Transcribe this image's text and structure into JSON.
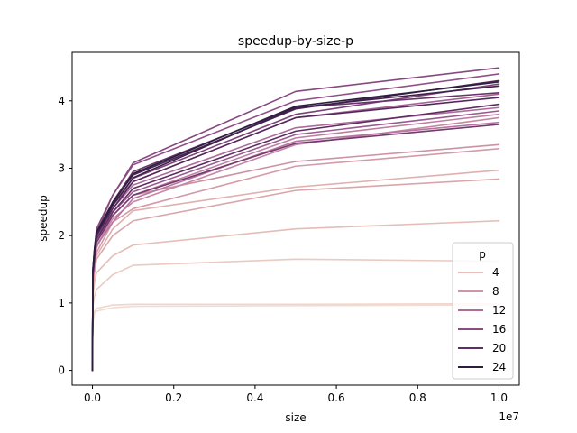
{
  "chart_data": {
    "type": "line",
    "title": "speedup-by-size-p",
    "xlabel": "size",
    "ylabel": "speedup",
    "x_offset_label": "1e7",
    "xlim": [
      -500000,
      10500000
    ],
    "ylim": [
      -0.22,
      4.72
    ],
    "x_ticks": [
      0,
      2000000,
      4000000,
      6000000,
      8000000,
      10000000
    ],
    "x_tick_labels": [
      "0.0",
      "0.2",
      "0.4",
      "0.6",
      "0.8",
      "1.0"
    ],
    "y_ticks": [
      0,
      1,
      2,
      3,
      4
    ],
    "y_tick_labels": [
      "0",
      "1",
      "2",
      "3",
      "4"
    ],
    "grid": false,
    "legend": {
      "title": "p",
      "placement": "lower-right",
      "entries": [
        {
          "label": "4",
          "color": "#e8bfb8"
        },
        {
          "label": "8",
          "color": "#cf94a6"
        },
        {
          "label": "12",
          "color": "#b06e97"
        },
        {
          "label": "16",
          "color": "#8a4d80"
        },
        {
          "label": "20",
          "color": "#5e2e66"
        },
        {
          "label": "24",
          "color": "#2d1e3e"
        }
      ]
    },
    "x": [
      0,
      10000,
      50000,
      100000,
      500000,
      1000000,
      5000000,
      10000000
    ],
    "series": [
      {
        "color": "#f3dcd4",
        "values": [
          0,
          0.7,
          0.85,
          0.88,
          0.93,
          0.95,
          0.96,
          0.97
        ]
      },
      {
        "color": "#f0d5cd",
        "values": [
          0,
          0.75,
          0.87,
          0.92,
          0.97,
          0.98,
          0.98,
          0.99
        ]
      },
      {
        "color": "#eacac1",
        "values": [
          0,
          0.95,
          1.1,
          1.2,
          1.42,
          1.56,
          1.65,
          1.62
        ]
      },
      {
        "color": "#e5bdb6",
        "values": [
          0,
          1.1,
          1.3,
          1.45,
          1.7,
          1.86,
          2.1,
          2.22
        ]
      },
      {
        "color": "#dfb0ae",
        "values": [
          0,
          1.25,
          1.5,
          1.7,
          2.1,
          2.37,
          2.72,
          2.97
        ]
      },
      {
        "color": "#d9a6aa",
        "values": [
          0,
          1.2,
          1.45,
          1.65,
          2.0,
          2.22,
          2.67,
          2.84
        ]
      },
      {
        "color": "#d39aa7",
        "values": [
          0,
          1.3,
          1.55,
          1.75,
          2.2,
          2.4,
          3.03,
          3.29
        ]
      },
      {
        "color": "#cc91a5",
        "values": [
          0,
          1.35,
          1.6,
          1.82,
          2.3,
          2.6,
          3.1,
          3.35
        ]
      },
      {
        "color": "#c587a3",
        "values": [
          0,
          1.35,
          1.6,
          1.85,
          2.25,
          2.5,
          3.35,
          3.75
        ]
      },
      {
        "color": "#be7ea1",
        "values": [
          0,
          1.4,
          1.65,
          1.9,
          2.3,
          2.6,
          3.45,
          3.8
        ]
      },
      {
        "color": "#b6749e",
        "values": [
          0,
          1.35,
          1.6,
          1.85,
          2.2,
          2.55,
          3.4,
          3.68
        ]
      },
      {
        "color": "#ad6b9a",
        "values": [
          0,
          1.4,
          1.7,
          1.95,
          2.4,
          2.75,
          3.6,
          3.9
        ]
      },
      {
        "color": "#a46295",
        "values": [
          0,
          1.45,
          1.75,
          2.0,
          2.45,
          2.8,
          3.75,
          4.1
        ]
      },
      {
        "color": "#9a598f",
        "values": [
          0,
          1.4,
          1.65,
          1.9,
          2.35,
          2.65,
          3.5,
          3.85
        ]
      },
      {
        "color": "#905187",
        "values": [
          0,
          1.45,
          1.75,
          2.05,
          2.6,
          3.05,
          4.0,
          4.4
        ]
      },
      {
        "color": "#86497f",
        "values": [
          0,
          1.5,
          1.8,
          2.1,
          2.6,
          3.08,
          4.14,
          4.49
        ]
      },
      {
        "color": "#7c4177",
        "values": [
          0,
          1.45,
          1.7,
          2.0,
          2.45,
          2.85,
          3.8,
          4.25
        ]
      },
      {
        "color": "#723a70",
        "values": [
          0,
          1.4,
          1.65,
          1.9,
          2.3,
          2.6,
          3.37,
          3.65
        ]
      },
      {
        "color": "#683369",
        "values": [
          0,
          1.45,
          1.75,
          2.0,
          2.5,
          2.95,
          3.9,
          4.12
        ]
      },
      {
        "color": "#5e2e62",
        "values": [
          0,
          1.4,
          1.68,
          1.95,
          2.35,
          2.7,
          3.55,
          3.95
        ]
      },
      {
        "color": "#53295a",
        "values": [
          0,
          1.45,
          1.72,
          2.0,
          2.4,
          2.8,
          3.75,
          4.05
        ]
      },
      {
        "color": "#472452",
        "values": [
          0,
          1.5,
          1.8,
          2.05,
          2.5,
          2.9,
          3.88,
          4.3
        ]
      },
      {
        "color": "#3b2049",
        "values": [
          0,
          1.45,
          1.75,
          2.02,
          2.45,
          2.86,
          3.9,
          4.22
        ]
      },
      {
        "color": "#2d1e3e",
        "values": [
          0,
          1.5,
          1.8,
          2.05,
          2.48,
          2.92,
          3.92,
          4.28
        ]
      }
    ]
  }
}
